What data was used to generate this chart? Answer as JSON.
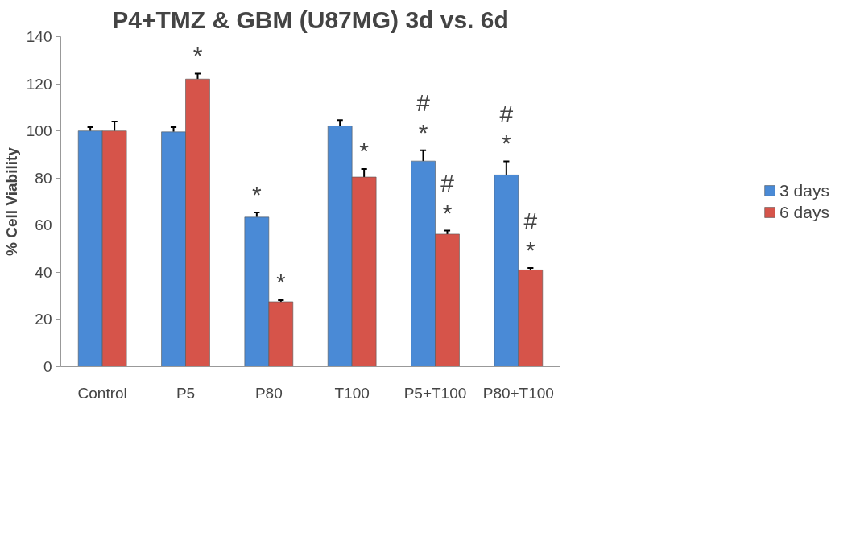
{
  "chart_data": {
    "type": "bar",
    "title": "P4+TMZ & GBM (U87MG) 3d vs. 6d",
    "ylabel": "% Cell Viability",
    "categories": [
      "Control",
      "P5",
      "P80",
      "T100",
      "P5+T100",
      "P80+T100"
    ],
    "series": [
      {
        "name": "3 days",
        "color": "#4a8ad6",
        "values": [
          100,
          99.6,
          63.4,
          102.1,
          87.2,
          81.3
        ],
        "errors": [
          1.6,
          2,
          2,
          2.5,
          4.6,
          5.8
        ],
        "value_labels": [
          null,
          null,
          "*",
          null,
          "#\n*",
          "#\n*"
        ]
      },
      {
        "name": "6 days",
        "color": "#d6544a",
        "values": [
          100,
          122,
          27.5,
          80.4,
          56.2,
          41
        ],
        "errors": [
          4,
          2.3,
          0.7,
          3.4,
          1.5,
          0.8
        ],
        "value_labels": [
          null,
          "*",
          "*",
          "*",
          "#\n*",
          "#\n*"
        ]
      }
    ],
    "ylim": [
      0,
      140
    ],
    "yticks": [
      0,
      20,
      40,
      60,
      80,
      100,
      120,
      140
    ],
    "grid": false,
    "legend": "right"
  }
}
